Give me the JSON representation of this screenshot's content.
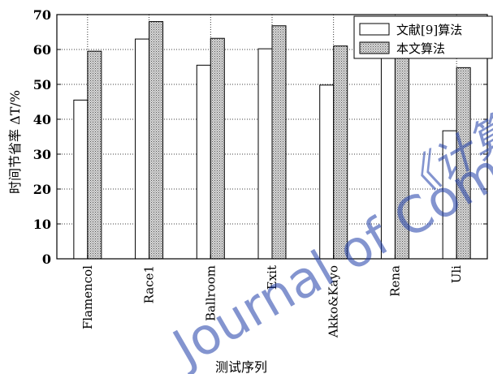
{
  "chart_data": {
    "type": "bar",
    "title": "",
    "xlabel": "测试序列",
    "ylabel": "时间节省率 ΔT/%",
    "ylim": [
      0,
      70
    ],
    "yticks": [
      0,
      10,
      20,
      30,
      40,
      50,
      60,
      70
    ],
    "grid": true,
    "legend_position": "top-right",
    "categories": [
      "Flamencol",
      "Race1",
      "Ballroom",
      "Exit",
      "Akko&Kayo",
      "Rena",
      "Uli"
    ],
    "series": [
      {
        "name": "文献[9]算法",
        "fill": "#ffffff",
        "pattern": "none",
        "values": [
          45.5,
          63,
          55.5,
          60.2,
          49.8,
          62.8,
          36.7
        ]
      },
      {
        "name": "本文算法",
        "fill": "#c8c8c8",
        "pattern": "dotted-hatch",
        "values": [
          59.5,
          68,
          63.2,
          66.8,
          61,
          65.8,
          54.8
        ]
      }
    ]
  },
  "watermark": {
    "line1": "《计算",
    "line2": "Journal of Com",
    "color": "#1f3ea8"
  }
}
